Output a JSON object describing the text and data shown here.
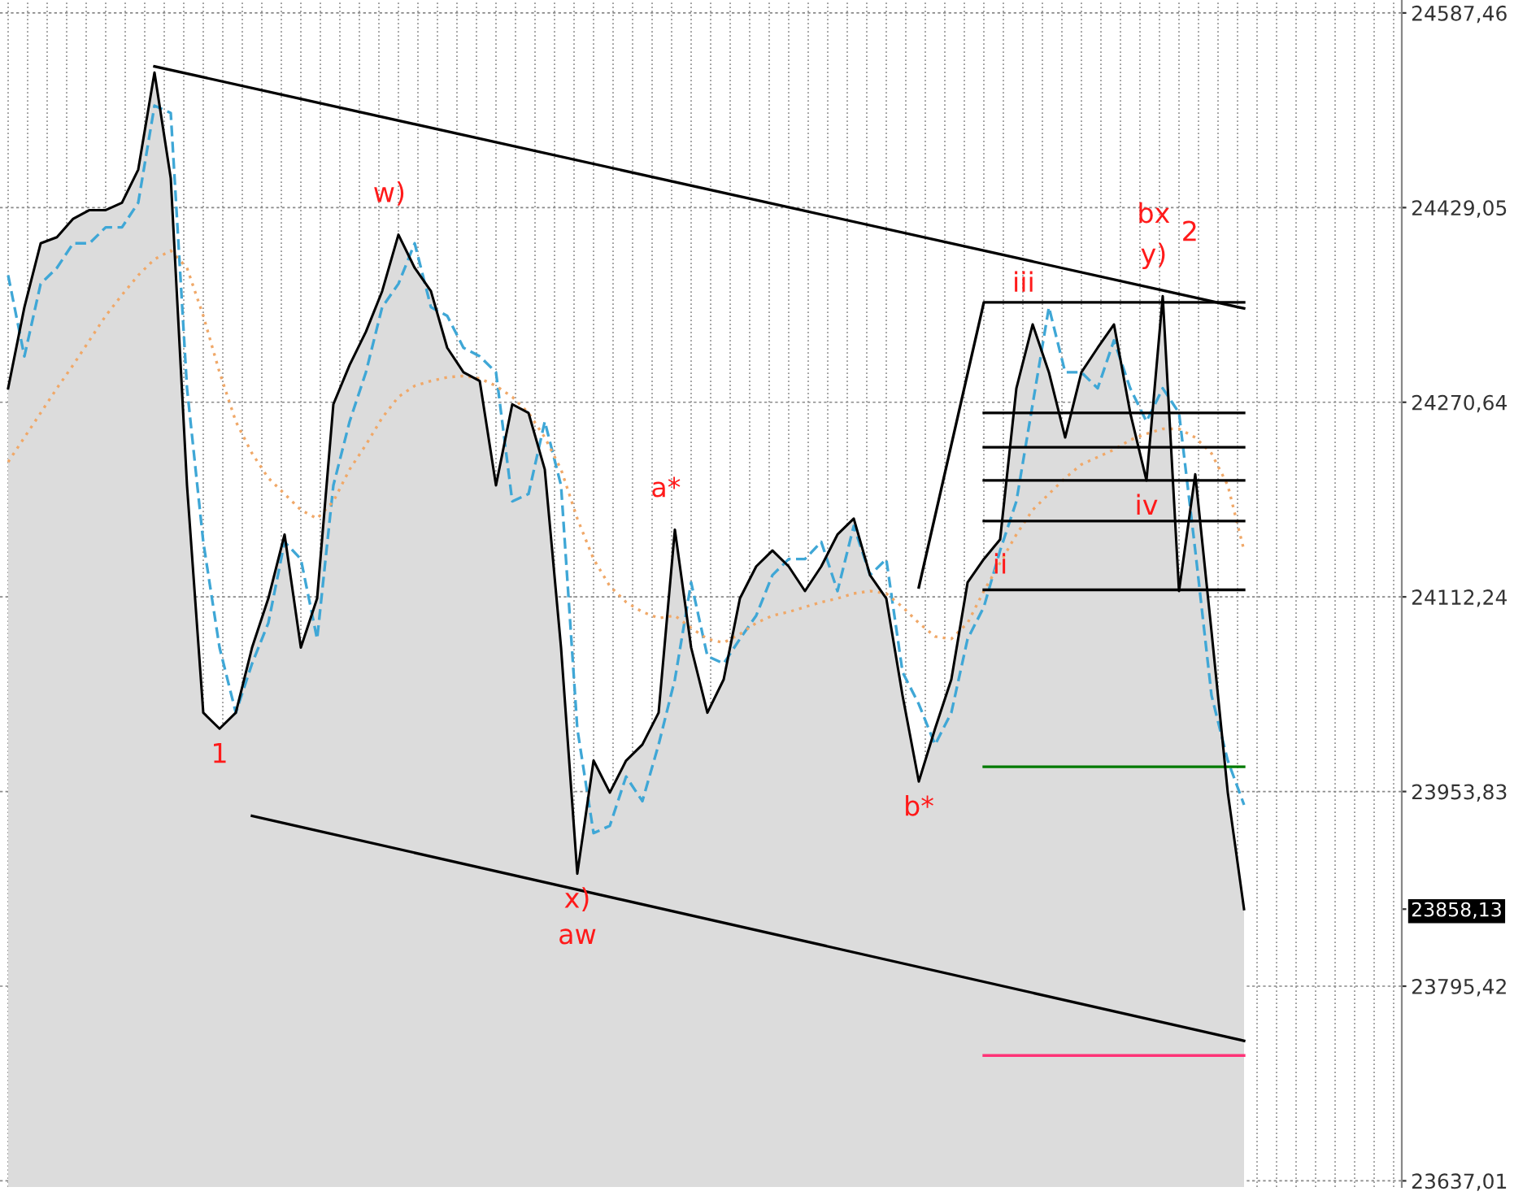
{
  "chart_data": {
    "type": "line",
    "grid": true,
    "tick_labels": "y",
    "categories": [
      null,
      null,
      null,
      null,
      null,
      null,
      null,
      null,
      null,
      null,
      null,
      null,
      null,
      null,
      null,
      null,
      null,
      null,
      null,
      null,
      null,
      null,
      null,
      null,
      null,
      null,
      null,
      null,
      null,
      null,
      null,
      null,
      null,
      null,
      null,
      null,
      null,
      null,
      null,
      null,
      null,
      null,
      null,
      null,
      null,
      null,
      null,
      null,
      null,
      null,
      null,
      null,
      null,
      null,
      null,
      null,
      null,
      null,
      null,
      null,
      null,
      null,
      null,
      null,
      null,
      null,
      null,
      null,
      null,
      null,
      null,
      null,
      null,
      null,
      null,
      null,
      null
    ],
    "ylim": [
      23632,
      24598
    ],
    "yticks": [
      {
        "value": 24587.46,
        "label": "24587,46"
      },
      {
        "value": 24429.05,
        "label": "24429,05"
      },
      {
        "value": 24270.64,
        "label": "24270,64"
      },
      {
        "value": 24112.24,
        "label": "24112,24"
      },
      {
        "value": 23953.83,
        "label": "23953,83"
      },
      {
        "value": 23795.42,
        "label": "23795,42"
      },
      {
        "value": 23637.01,
        "label": "23637,01"
      },
      {
        "value": 23858.13,
        "label": "23858,13"
      }
    ],
    "series": [
      {
        "type": "area",
        "color": "#dcdcdc",
        "values": [
          24282,
          24348,
          24400,
          24405,
          24420,
          24427,
          24427,
          24433,
          24460,
          24539,
          24453,
          24203,
          24018,
          24005,
          24018,
          24071,
          24111,
          24163,
          24071,
          24111,
          24269,
          24301,
          24328,
          24361,
          24407,
          24380,
          24361,
          24315,
          24295,
          24288,
          24203,
          24269,
          24262,
          24216,
          24071,
          23887,
          23979,
          23953,
          23979,
          23992,
          24018,
          24167,
          24071,
          24018,
          24045,
          24111,
          24137,
          24150,
          24137,
          24117,
          24137,
          24163,
          24176,
          24130,
          24111,
          24032,
          23962,
          24005,
          24045,
          24124,
          24143,
          24159,
          24282,
          24334,
          24295,
          24242,
          24295,
          24315,
          24334,
          24262,
          24207,
          24357,
          24117,
          24212,
          24084,
          23953,
          23858.13
        ]
      },
      {
        "color": "#3fa7d6",
        "line_style": "dashed",
        "values": [
          24374,
          24308,
          24367,
          24380,
          24400,
          24400,
          24413,
          24413,
          24433,
          24512,
          24506,
          24282,
          24157,
          24071,
          24018,
          24058,
          24091,
          24157,
          24143,
          24078,
          24203,
          24255,
          24295,
          24348,
          24367,
          24400,
          24348,
          24341,
          24315,
          24308,
          24295,
          24190,
          24196,
          24255,
          24203,
          24005,
          23920,
          23926,
          23966,
          23946,
          23992,
          24045,
          24124,
          24064,
          24058,
          24078,
          24097,
          24130,
          24143,
          24143,
          24157,
          24117,
          24170,
          24130,
          24143,
          24051,
          24025,
          23992,
          24018,
          24078,
          24104,
          24150,
          24190,
          24269,
          24348,
          24295,
          24295,
          24282,
          24321,
          24282,
          24255,
          24282,
          24262,
          24150,
          24032,
          23979,
          23943
        ]
      },
      {
        "color": "#f0a868",
        "line_style": "dotted",
        "values": [
          24222,
          24242,
          24262,
          24282,
          24301,
          24321,
          24341,
          24358,
          24374,
          24387,
          24394,
          24380,
          24341,
          24295,
          24255,
          24229,
          24209,
          24196,
          24183,
          24176,
          24190,
          24216,
          24236,
          24258,
          24275,
          24284,
          24288,
          24291,
          24292,
          24290,
          24284,
          24275,
          24262,
          24242,
          24216,
          24176,
          24143,
          24121,
          24108,
          24100,
          24095,
          24097,
          24087,
          24078,
          24075,
          24082,
          24091,
          24097,
          24100,
          24104,
          24108,
          24111,
          24115,
          24117,
          24115,
          24104,
          24091,
          24080,
          24078,
          24091,
          24117,
          24140,
          24163,
          24183,
          24196,
          24209,
          24220,
          24226,
          24232,
          24240,
          24245,
          24249,
          24249,
          24242,
          24229,
          24203,
          24150
        ]
      },
      {
        "color": "#000000",
        "line_style": "solid",
        "values": [
          null,
          null,
          null,
          null,
          null,
          null,
          null,
          null,
          null,
          24544,
          null,
          null,
          null,
          null,
          null,
          null,
          null,
          null,
          null,
          null,
          null,
          null,
          null,
          null,
          null,
          null,
          null,
          null,
          null,
          null,
          null,
          null,
          null,
          null,
          null,
          null,
          null,
          null,
          null,
          null,
          null,
          null,
          null,
          null,
          null,
          null,
          null,
          null,
          null,
          null,
          null,
          null,
          null,
          null,
          null,
          null,
          null,
          null,
          null,
          null,
          null,
          null,
          null,
          null,
          null,
          null,
          null,
          null,
          null,
          null,
          null,
          null,
          null,
          null,
          null,
          null,
          24347
        ]
      },
      {
        "color": "#000000",
        "line_style": "solid",
        "values": [
          null,
          null,
          null,
          null,
          null,
          null,
          null,
          null,
          null,
          null,
          null,
          null,
          null,
          null,
          null,
          23934,
          null,
          null,
          null,
          null,
          null,
          null,
          null,
          null,
          null,
          null,
          null,
          null,
          null,
          null,
          null,
          null,
          null,
          null,
          null,
          null,
          null,
          null,
          null,
          null,
          null,
          null,
          null,
          null,
          null,
          null,
          null,
          null,
          null,
          null,
          null,
          null,
          null,
          null,
          null,
          null,
          null,
          null,
          null,
          null,
          null,
          null,
          null,
          null,
          null,
          null,
          null,
          null,
          null,
          null,
          null,
          null,
          null,
          null,
          null,
          null,
          23751
        ]
      },
      {
        "color": "#000000",
        "line_style": "solid",
        "values": [
          null,
          null,
          null,
          null,
          null,
          null,
          null,
          null,
          null,
          null,
          null,
          null,
          null,
          null,
          null,
          null,
          null,
          null,
          null,
          null,
          null,
          null,
          null,
          null,
          null,
          null,
          null,
          null,
          null,
          null,
          null,
          null,
          null,
          null,
          null,
          null,
          null,
          null,
          null,
          null,
          null,
          null,
          null,
          null,
          null,
          null,
          null,
          null,
          null,
          null,
          null,
          null,
          null,
          null,
          null,
          null,
          24120,
          null,
          null,
          null,
          24352,
          null,
          null,
          null,
          null,
          null,
          null,
          null,
          null,
          null,
          null,
          null,
          null,
          null,
          null,
          null,
          24352
        ]
      },
      {
        "color": "#000000",
        "line_style": "solid",
        "values": [
          null,
          null,
          null,
          null,
          null,
          null,
          null,
          null,
          null,
          null,
          null,
          null,
          null,
          null,
          null,
          null,
          null,
          null,
          null,
          null,
          null,
          null,
          null,
          null,
          null,
          null,
          null,
          null,
          null,
          null,
          null,
          null,
          null,
          null,
          null,
          null,
          null,
          null,
          null,
          null,
          null,
          null,
          null,
          null,
          null,
          null,
          null,
          null,
          null,
          null,
          null,
          null,
          null,
          null,
          null,
          null,
          null,
          null,
          null,
          null,
          24262,
          null,
          null,
          null,
          null,
          null,
          null,
          null,
          null,
          null,
          null,
          null,
          null,
          null,
          null,
          null,
          24262
        ]
      },
      {
        "color": "#000000",
        "line_style": "solid",
        "values": [
          null,
          null,
          null,
          null,
          null,
          null,
          null,
          null,
          null,
          null,
          null,
          null,
          null,
          null,
          null,
          null,
          null,
          null,
          null,
          null,
          null,
          null,
          null,
          null,
          null,
          null,
          null,
          null,
          null,
          null,
          null,
          null,
          null,
          null,
          null,
          null,
          null,
          null,
          null,
          null,
          null,
          null,
          null,
          null,
          null,
          null,
          null,
          null,
          null,
          null,
          null,
          null,
          null,
          null,
          null,
          null,
          null,
          null,
          null,
          null,
          24234,
          null,
          null,
          null,
          null,
          null,
          null,
          null,
          null,
          null,
          null,
          null,
          null,
          null,
          null,
          null,
          24234
        ]
      },
      {
        "color": "#000000",
        "line_style": "solid",
        "values": [
          null,
          null,
          null,
          null,
          null,
          null,
          null,
          null,
          null,
          null,
          null,
          null,
          null,
          null,
          null,
          null,
          null,
          null,
          null,
          null,
          null,
          null,
          null,
          null,
          null,
          null,
          null,
          null,
          null,
          null,
          null,
          null,
          null,
          null,
          null,
          null,
          null,
          null,
          null,
          null,
          null,
          null,
          null,
          null,
          null,
          null,
          null,
          null,
          null,
          null,
          null,
          null,
          null,
          null,
          null,
          null,
          null,
          null,
          null,
          null,
          24207,
          null,
          null,
          null,
          null,
          null,
          null,
          null,
          null,
          null,
          null,
          null,
          null,
          null,
          null,
          null,
          24207
        ]
      },
      {
        "color": "#000000",
        "line_style": "solid",
        "values": [
          null,
          null,
          null,
          null,
          null,
          null,
          null,
          null,
          null,
          null,
          null,
          null,
          null,
          null,
          null,
          null,
          null,
          null,
          null,
          null,
          null,
          null,
          null,
          null,
          null,
          null,
          null,
          null,
          null,
          null,
          null,
          null,
          null,
          null,
          null,
          null,
          null,
          null,
          null,
          null,
          null,
          null,
          null,
          null,
          null,
          null,
          null,
          null,
          null,
          null,
          null,
          null,
          null,
          null,
          null,
          null,
          null,
          null,
          null,
          null,
          24174,
          null,
          null,
          null,
          null,
          null,
          null,
          null,
          null,
          null,
          null,
          null,
          null,
          null,
          null,
          null,
          24174
        ]
      },
      {
        "color": "#000000",
        "line_style": "solid",
        "values": [
          null,
          null,
          null,
          null,
          null,
          null,
          null,
          null,
          null,
          null,
          null,
          null,
          null,
          null,
          null,
          null,
          null,
          null,
          null,
          null,
          null,
          null,
          null,
          null,
          null,
          null,
          null,
          null,
          null,
          null,
          null,
          null,
          null,
          null,
          null,
          null,
          null,
          null,
          null,
          null,
          null,
          null,
          null,
          null,
          null,
          null,
          null,
          null,
          null,
          null,
          null,
          null,
          null,
          null,
          null,
          null,
          null,
          null,
          null,
          null,
          24118,
          null,
          null,
          null,
          null,
          null,
          null,
          null,
          null,
          null,
          null,
          null,
          null,
          null,
          null,
          null,
          24118
        ]
      },
      {
        "color": "#007a00",
        "line_style": "solid",
        "values": [
          null,
          null,
          null,
          null,
          null,
          null,
          null,
          null,
          null,
          null,
          null,
          null,
          null,
          null,
          null,
          null,
          null,
          null,
          null,
          null,
          null,
          null,
          null,
          null,
          null,
          null,
          null,
          null,
          null,
          null,
          null,
          null,
          null,
          null,
          null,
          null,
          null,
          null,
          null,
          null,
          null,
          null,
          null,
          null,
          null,
          null,
          null,
          null,
          null,
          null,
          null,
          null,
          null,
          null,
          null,
          null,
          null,
          null,
          null,
          null,
          23974,
          null,
          null,
          null,
          null,
          null,
          null,
          null,
          null,
          null,
          null,
          null,
          null,
          null,
          null,
          null,
          23974
        ]
      },
      {
        "color": "#ff3377",
        "line_style": "solid",
        "values": [
          null,
          null,
          null,
          null,
          null,
          null,
          null,
          null,
          null,
          null,
          null,
          null,
          null,
          null,
          null,
          null,
          null,
          null,
          null,
          null,
          null,
          null,
          null,
          null,
          null,
          null,
          null,
          null,
          null,
          null,
          null,
          null,
          null,
          null,
          null,
          null,
          null,
          null,
          null,
          null,
          null,
          null,
          null,
          null,
          null,
          null,
          null,
          null,
          null,
          null,
          null,
          null,
          null,
          null,
          null,
          null,
          null,
          null,
          null,
          null,
          23739,
          null,
          null,
          null,
          null,
          null,
          null,
          null,
          null,
          null,
          null,
          null,
          null,
          null,
          null,
          null,
          23739
        ]
      }
    ],
    "annotations": [
      {
        "text": "1",
        "y": 24005
      },
      {
        "text": "w)",
        "y": 24407
      },
      {
        "text": "x)",
        "y": 23887
      },
      {
        "text": "aw",
        "y": 23887
      },
      {
        "text": "a*",
        "y": 24167
      },
      {
        "text": "b*",
        "y": 23962
      },
      {
        "text": "ii",
        "y": 24159
      },
      {
        "text": "iii",
        "y": 24334
      },
      {
        "text": "iv",
        "y": 24207
      },
      {
        "text": "y)",
        "y": 24357
      },
      {
        "text": "bx",
        "y": 24357
      },
      {
        "text": "2",
        "y": 24357
      }
    ]
  }
}
